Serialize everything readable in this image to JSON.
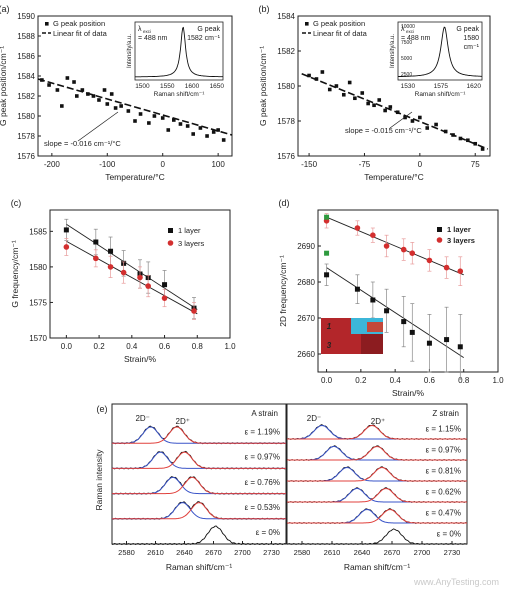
{
  "watermark": "www.AnyTesting.com",
  "chart_data": [
    {
      "panel": "(a)",
      "type": "scatter",
      "ylabel": "G peak position/cm⁻¹",
      "xlabel": "Temperature/°C",
      "xlim": [
        -225,
        125
      ],
      "ylim": [
        1576,
        1590
      ],
      "xticks": [
        -200,
        -100,
        0,
        100
      ],
      "yticks": [
        1576,
        1578,
        1580,
        1582,
        1584,
        1586,
        1588,
        1590
      ],
      "legend": [
        "G peak position",
        "Linear fit of data"
      ],
      "points": [
        [
          -218,
          1583.6
        ],
        [
          -205,
          1583.1
        ],
        [
          -190,
          1582.6
        ],
        [
          -182,
          1581.0
        ],
        [
          -172,
          1583.8
        ],
        [
          -160,
          1583.4
        ],
        [
          -155,
          1582.0
        ],
        [
          -145,
          1582.6
        ],
        [
          -135,
          1582.2
        ],
        [
          -125,
          1582.0
        ],
        [
          -115,
          1581.6
        ],
        [
          -105,
          1582.6
        ],
        [
          -100,
          1581.2
        ],
        [
          -92,
          1582.2
        ],
        [
          -85,
          1580.8
        ],
        [
          -75,
          1581.0
        ],
        [
          -62,
          1580.5
        ],
        [
          -50,
          1579.5
        ],
        [
          -40,
          1580.2
        ],
        [
          -25,
          1579.3
        ],
        [
          -15,
          1580.0
        ],
        [
          0,
          1579.8
        ],
        [
          10,
          1578.6
        ],
        [
          20,
          1579.6
        ],
        [
          32,
          1579.2
        ],
        [
          45,
          1579.0
        ],
        [
          55,
          1578.2
        ],
        [
          68,
          1578.8
        ],
        [
          80,
          1578.0
        ],
        [
          92,
          1578.4
        ],
        [
          100,
          1578.6
        ],
        [
          110,
          1577.6
        ]
      ],
      "fit": [
        [
          -225,
          1583.7
        ],
        [
          125,
          1578.1
        ]
      ],
      "annotation": "slope = -0.016 cm⁻¹/°C",
      "inset": {
        "line1": "λ",
        "line1_sub": "exci",
        "line2": "= 488 nm",
        "peak_label1": "G peak",
        "peak_label2": "1582 cm⁻¹",
        "xlabel": "Raman shift/cm⁻¹",
        "ylabel": "Intensity/a.u.",
        "xticks": [
          1500,
          1550,
          1600,
          1650
        ],
        "peak": 1582
      }
    },
    {
      "panel": "(b)",
      "type": "scatter",
      "ylabel": "G peak position/cm⁻¹",
      "xlabel": "Temperature/°C",
      "xlim": [
        -165,
        95
      ],
      "ylim": [
        1576,
        1584
      ],
      "xticks": [
        -150,
        -75,
        0,
        75
      ],
      "yticks": [
        1576,
        1578,
        1580,
        1582,
        1584
      ],
      "legend": [
        "G peak position",
        "Linear fit of data"
      ],
      "points": [
        [
          -150,
          1580.6
        ],
        [
          -140,
          1580.4
        ],
        [
          -132,
          1580.8
        ],
        [
          -122,
          1579.8
        ],
        [
          -113,
          1580.0
        ],
        [
          -103,
          1579.5
        ],
        [
          -95,
          1580.2
        ],
        [
          -88,
          1579.3
        ],
        [
          -78,
          1579.6
        ],
        [
          -70,
          1579.0
        ],
        [
          -62,
          1578.9
        ],
        [
          -55,
          1579.2
        ],
        [
          -47,
          1578.6
        ],
        [
          -40,
          1578.8
        ],
        [
          -30,
          1578.5
        ],
        [
          -20,
          1578.2
        ],
        [
          -10,
          1578.0
        ],
        [
          0,
          1578.2
        ],
        [
          10,
          1577.6
        ],
        [
          22,
          1577.8
        ],
        [
          35,
          1577.4
        ],
        [
          45,
          1577.2
        ],
        [
          55,
          1577.0
        ],
        [
          65,
          1576.9
        ],
        [
          75,
          1576.7
        ],
        [
          85,
          1576.4
        ]
      ],
      "fit": [
        [
          -160,
          1580.7
        ],
        [
          92,
          1576.4
        ]
      ],
      "annotation": "slope = -0.015 cm⁻¹/°C",
      "inset": {
        "line1": "λ",
        "line1_sub": "exci",
        "line2": "= 488 nm",
        "peak_label1": "G peak",
        "peak_label2": "1580",
        "peak_label3": "cm⁻¹",
        "xlabel": "Raman shift/cm⁻¹",
        "ylabel": "Intensity/a.u.",
        "xticks": [
          1530,
          1575,
          1620
        ],
        "yticks": [
          2500,
          5000,
          7500,
          10000
        ],
        "peak": 1580
      }
    },
    {
      "panel": "(c)",
      "type": "scatter",
      "ylabel": "G frequency/cm⁻¹",
      "xlabel": "Strain/%",
      "xlim": [
        -0.1,
        1.0
      ],
      "ylim": [
        1570,
        1588
      ],
      "xticks": [
        0.0,
        0.2,
        0.4,
        0.6,
        0.8,
        1.0
      ],
      "yticks": [
        1570,
        1575,
        1580,
        1585
      ],
      "series": [
        {
          "name": "1 layer",
          "color": "#111111",
          "marker": "square",
          "points": [
            [
              0.0,
              1585.2
            ],
            [
              0.18,
              1583.5
            ],
            [
              0.27,
              1582.2
            ],
            [
              0.35,
              1580.5
            ],
            [
              0.45,
              1579.0
            ],
            [
              0.5,
              1578.5
            ],
            [
              0.6,
              1577.5
            ],
            [
              0.78,
              1574.2
            ]
          ],
          "err": [
            1.5,
            1.8,
            2.0,
            1.8,
            2.0,
            2.2,
            2.0,
            1.5
          ],
          "fit": [
            [
              0.0,
              1586.0
            ],
            [
              0.8,
              1574.0
            ]
          ]
        },
        {
          "name": "3 layers",
          "color": "#d32f2f",
          "marker": "circle",
          "points": [
            [
              0.0,
              1582.8
            ],
            [
              0.18,
              1581.2
            ],
            [
              0.27,
              1580.0
            ],
            [
              0.35,
              1579.2
            ],
            [
              0.45,
              1578.5
            ],
            [
              0.5,
              1577.3
            ],
            [
              0.6,
              1575.6
            ],
            [
              0.78,
              1573.8
            ]
          ],
          "err": [
            1.2,
            1.2,
            1.5,
            1.5,
            1.5,
            1.5,
            1.2,
            1.2
          ],
          "fit": [
            [
              0.0,
              1583.6
            ],
            [
              0.8,
              1573.4
            ]
          ]
        }
      ]
    },
    {
      "panel": "(d)",
      "type": "scatter",
      "ylabel": "2D frequency/cm⁻¹",
      "xlabel": "Strain/%",
      "xlim": [
        -0.05,
        1.0
      ],
      "ylim": [
        2655,
        2700
      ],
      "xticks": [
        0.0,
        0.2,
        0.4,
        0.6,
        0.8,
        1.0
      ],
      "yticks": [
        2660,
        2670,
        2680,
        2690
      ],
      "series": [
        {
          "name": "1 layer",
          "color": "#111111",
          "marker": "square",
          "points": [
            [
              0.0,
              2682
            ],
            [
              0.18,
              2678
            ],
            [
              0.27,
              2675
            ],
            [
              0.35,
              2672
            ],
            [
              0.45,
              2669
            ],
            [
              0.5,
              2666
            ],
            [
              0.6,
              2663
            ],
            [
              0.7,
              2664
            ],
            [
              0.78,
              2662
            ]
          ],
          "err": [
            3,
            4,
            5,
            6,
            7,
            8,
            8,
            9,
            9
          ],
          "fit": [
            [
              0.0,
              2684
            ],
            [
              0.8,
              2659
            ]
          ]
        },
        {
          "name": "3 layers",
          "color": "#d32f2f",
          "marker": "circle",
          "points": [
            [
              0.0,
              2697
            ],
            [
              0.18,
              2695
            ],
            [
              0.27,
              2693
            ],
            [
              0.35,
              2690
            ],
            [
              0.45,
              2689
            ],
            [
              0.5,
              2688
            ],
            [
              0.6,
              2686
            ],
            [
              0.7,
              2684
            ],
            [
              0.78,
              2683
            ]
          ],
          "err": [
            2,
            2,
            2,
            3,
            3,
            3,
            3,
            3,
            4
          ],
          "fit": [
            [
              0.0,
              2698
            ],
            [
              0.8,
              2682
            ]
          ]
        },
        {
          "name": "",
          "color": "#2e9a3e",
          "marker": "square",
          "points": [
            [
              0.0,
              2688
            ],
            [
              0.0,
              2698
            ]
          ],
          "err": [
            0,
            0
          ],
          "fit": []
        }
      ],
      "inset_labels": [
        "1",
        "3"
      ]
    },
    {
      "panel": "(e)",
      "type": "line",
      "ylabel": "Raman intensity",
      "xlabel": "Raman shift/cm⁻¹",
      "subpanels": [
        {
          "title": "A strain",
          "xlim": [
            2565,
            2745
          ],
          "xticks": [
            2580,
            2610,
            2640,
            2670,
            2700,
            2730
          ],
          "peak_labels": [
            "2D⁻",
            "2D⁺"
          ],
          "traces": [
            {
              "label": "ε = 1.19%",
              "minus": 2605,
              "plus": 2632
            },
            {
              "label": "ε = 0.97%",
              "minus": 2615,
              "plus": 2640
            },
            {
              "label": "ε = 0.76%",
              "minus": 2628,
              "plus": 2648
            },
            {
              "label": "ε = 0.53%",
              "minus": 2638,
              "plus": 2655
            },
            {
              "label": "ε = 0%",
              "minus": 2672,
              "plus": 2672
            }
          ]
        },
        {
          "title": "Z strain",
          "xlim": [
            2565,
            2745
          ],
          "xticks": [
            2580,
            2610,
            2640,
            2670,
            2700,
            2730
          ],
          "peak_labels": [
            "2D⁻",
            "2D⁺"
          ],
          "traces": [
            {
              "label": "ε = 1.15%",
              "minus": 2600,
              "plus": 2650
            },
            {
              "label": "ε = 0.97%",
              "minus": 2612,
              "plus": 2655
            },
            {
              "label": "ε = 0.81%",
              "minus": 2625,
              "plus": 2660
            },
            {
              "label": "ε = 0.62%",
              "minus": 2635,
              "plus": 2664
            },
            {
              "label": "ε = 0.47%",
              "minus": 2645,
              "plus": 2668
            },
            {
              "label": "ε = 0%",
              "minus": 2672,
              "plus": 2672
            }
          ]
        }
      ]
    }
  ]
}
